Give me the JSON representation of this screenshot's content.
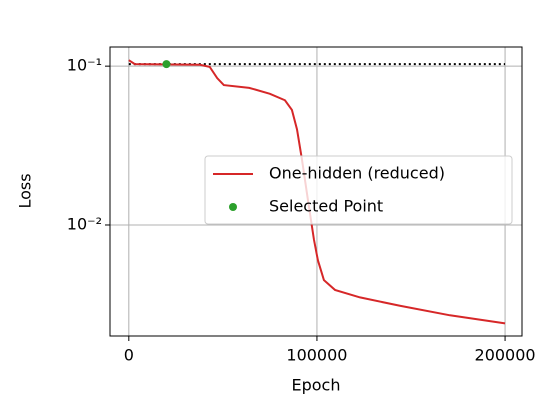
{
  "chart_data": {
    "type": "line",
    "x_label": "Epoch",
    "y_label": "Loss",
    "y_scale": "log",
    "grid": true,
    "legend_position": "right",
    "series": [
      {
        "name": "One-hidden (reduced)",
        "color": "#d62728",
        "x": [
          0,
          3200,
          37800,
          43000,
          47000,
          50500,
          64000,
          75000,
          83000,
          86700,
          89400,
          92000,
          95200,
          98400,
          100500,
          103700,
          109600,
          122900,
          144100,
          170700,
          200000
        ],
        "values": [
          0.109,
          0.103,
          0.102,
          0.099,
          0.084,
          0.076,
          0.073,
          0.067,
          0.061,
          0.053,
          0.04,
          0.026,
          0.0144,
          0.0081,
          0.006,
          0.0045,
          0.0039,
          0.0035,
          0.0031,
          0.0027,
          0.0024
        ]
      },
      {
        "name": "Selected Point",
        "color": "#2ca02c",
        "type": "scatter",
        "x": [
          20000
        ],
        "values": [
          0.103
        ]
      }
    ],
    "reference_line": {
      "value": 0.103,
      "color": "#000000",
      "style": "dotted"
    },
    "xlim": [
      -10000,
      209000
    ],
    "xticks": [
      0,
      100000,
      200000
    ],
    "ylim": [
      0.002,
      0.132
    ],
    "yticks": [
      {
        "value": 0.1,
        "label": "10⁻¹"
      },
      {
        "value": 0.01,
        "label": "10⁻²"
      }
    ]
  }
}
